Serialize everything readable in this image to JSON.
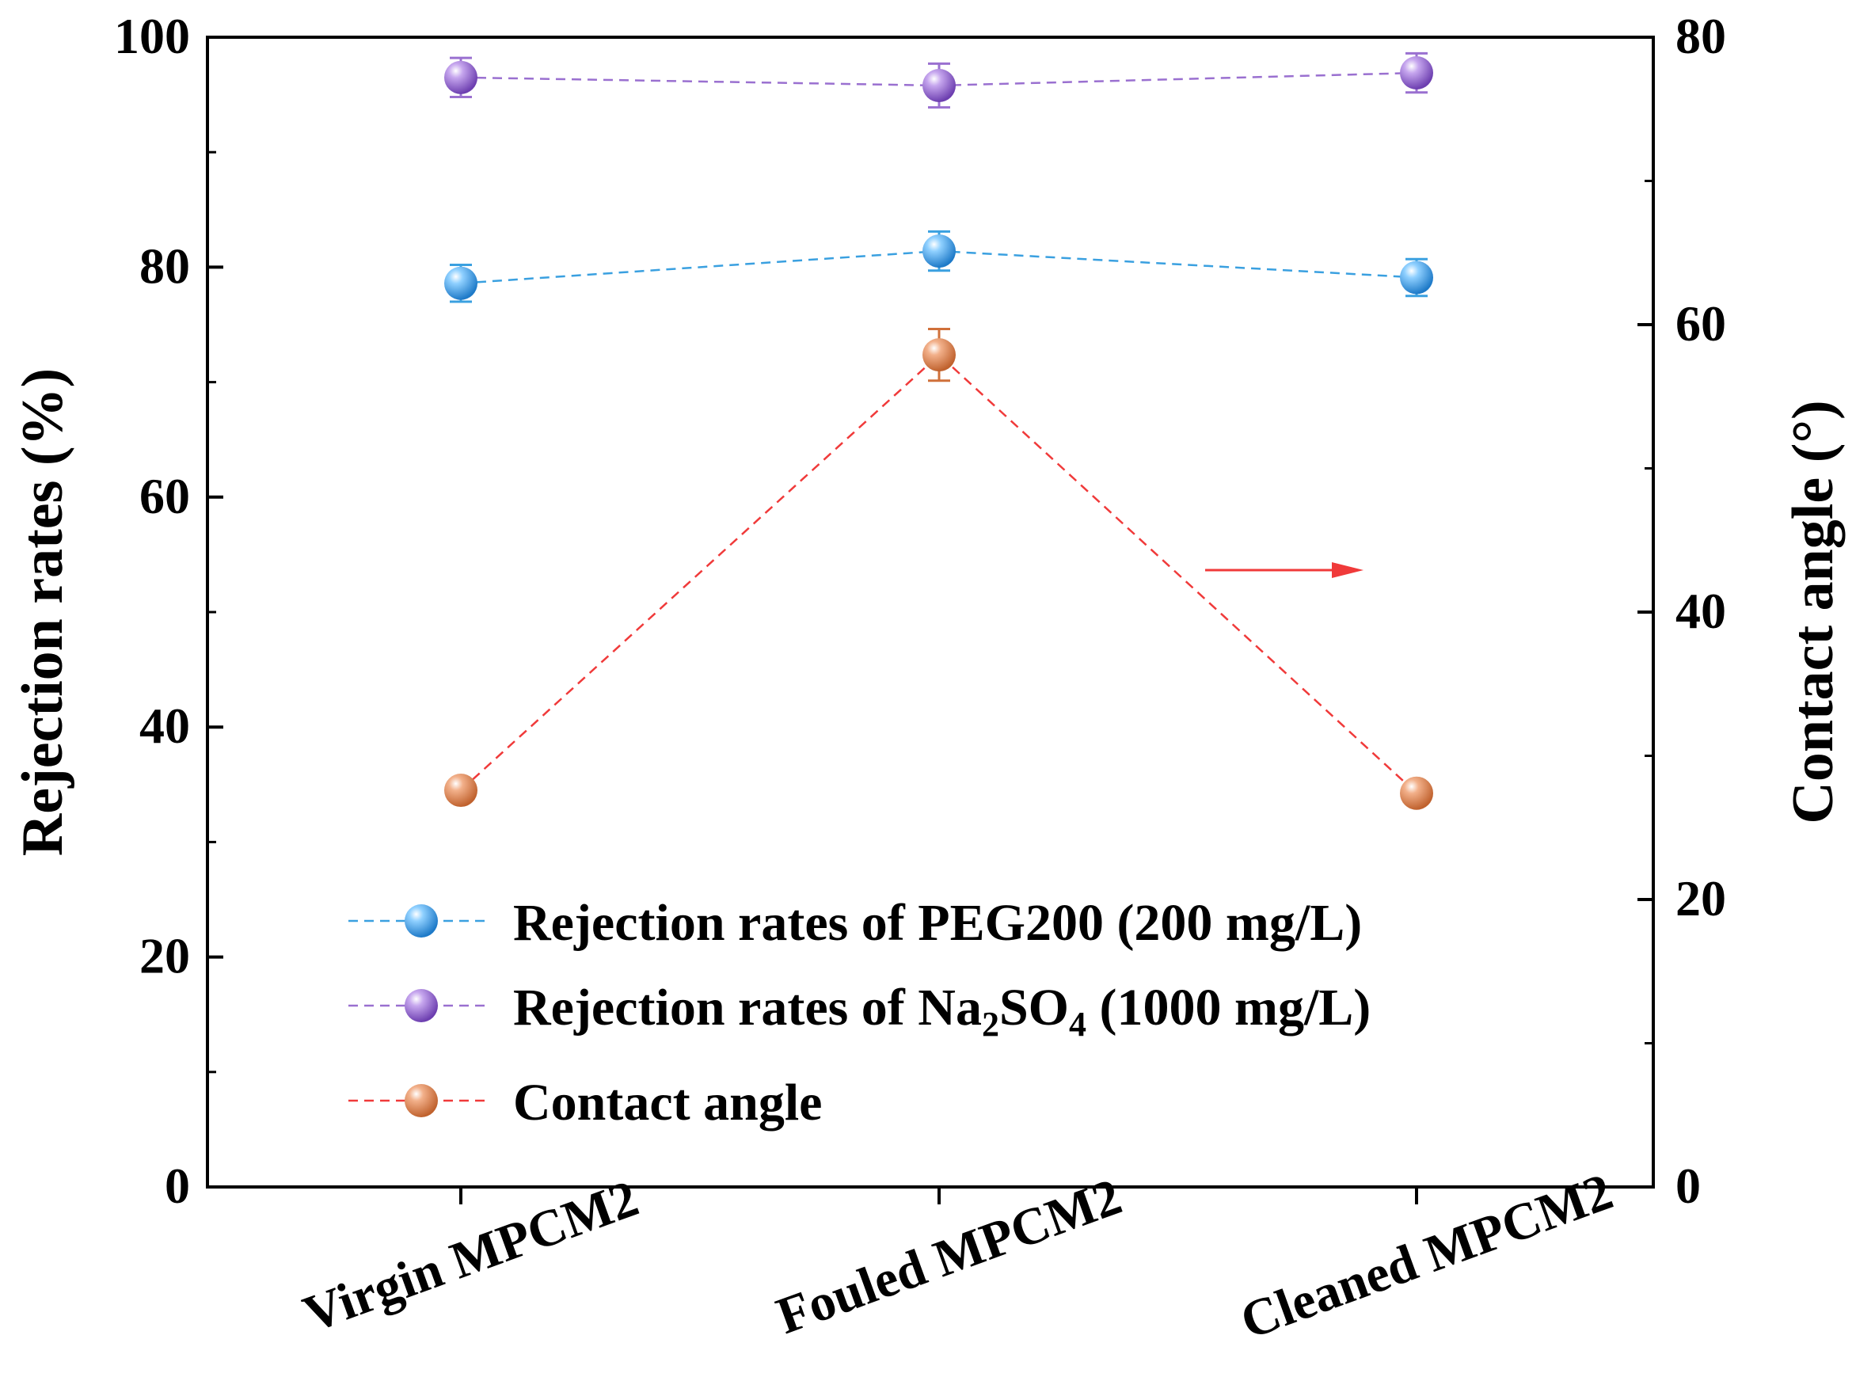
{
  "chart_data": {
    "type": "line",
    "categories": [
      "Virgin MPCM2",
      "Fouled MPCM2",
      "Cleaned MPCM2"
    ],
    "ylabel_left": "Rejection rates (%)",
    "ylabel_right": "Contact angle (°)",
    "ylim_left": [
      0,
      100
    ],
    "ylim_right": [
      0,
      80
    ],
    "yticks_left": [
      "0",
      "20",
      "40",
      "60",
      "80",
      "100"
    ],
    "yticks_right": [
      "0",
      "20",
      "40",
      "60",
      "80"
    ],
    "grid": false,
    "legend_position": "bottom-center",
    "series": [
      {
        "name": "Rejection rates of PEG200 (200 mg/L)",
        "axis": "left",
        "values": [
          78.6,
          81.4,
          79.1
        ],
        "errors": [
          1.6,
          1.7,
          1.6
        ],
        "line_color": "#3aa0e0",
        "marker_color": "#4aa8e8"
      },
      {
        "name_parts": [
          {
            "t": "Rejection rates of Na"
          },
          {
            "t": "2",
            "sub": true
          },
          {
            "t": "SO"
          },
          {
            "t": "4",
            "sub": true
          },
          {
            "t": " (1000 mg/L)"
          }
        ],
        "axis": "left",
        "values": [
          96.5,
          95.8,
          96.9
        ],
        "errors": [
          1.7,
          1.9,
          1.7
        ],
        "line_color": "#9a70d0",
        "marker_color": "#9b6bd6"
      },
      {
        "name": "Contact angle",
        "axis": "right",
        "values": [
          27.6,
          57.9,
          27.4
        ],
        "errors": [
          0.3,
          1.8,
          0.3
        ],
        "line_color": "#f03a3a",
        "marker_color": "#e08a5a"
      }
    ],
    "annotations": [
      {
        "type": "arrow",
        "direction": "right",
        "color": "#f03a3a",
        "meaning": "contact angle uses right axis"
      }
    ]
  }
}
